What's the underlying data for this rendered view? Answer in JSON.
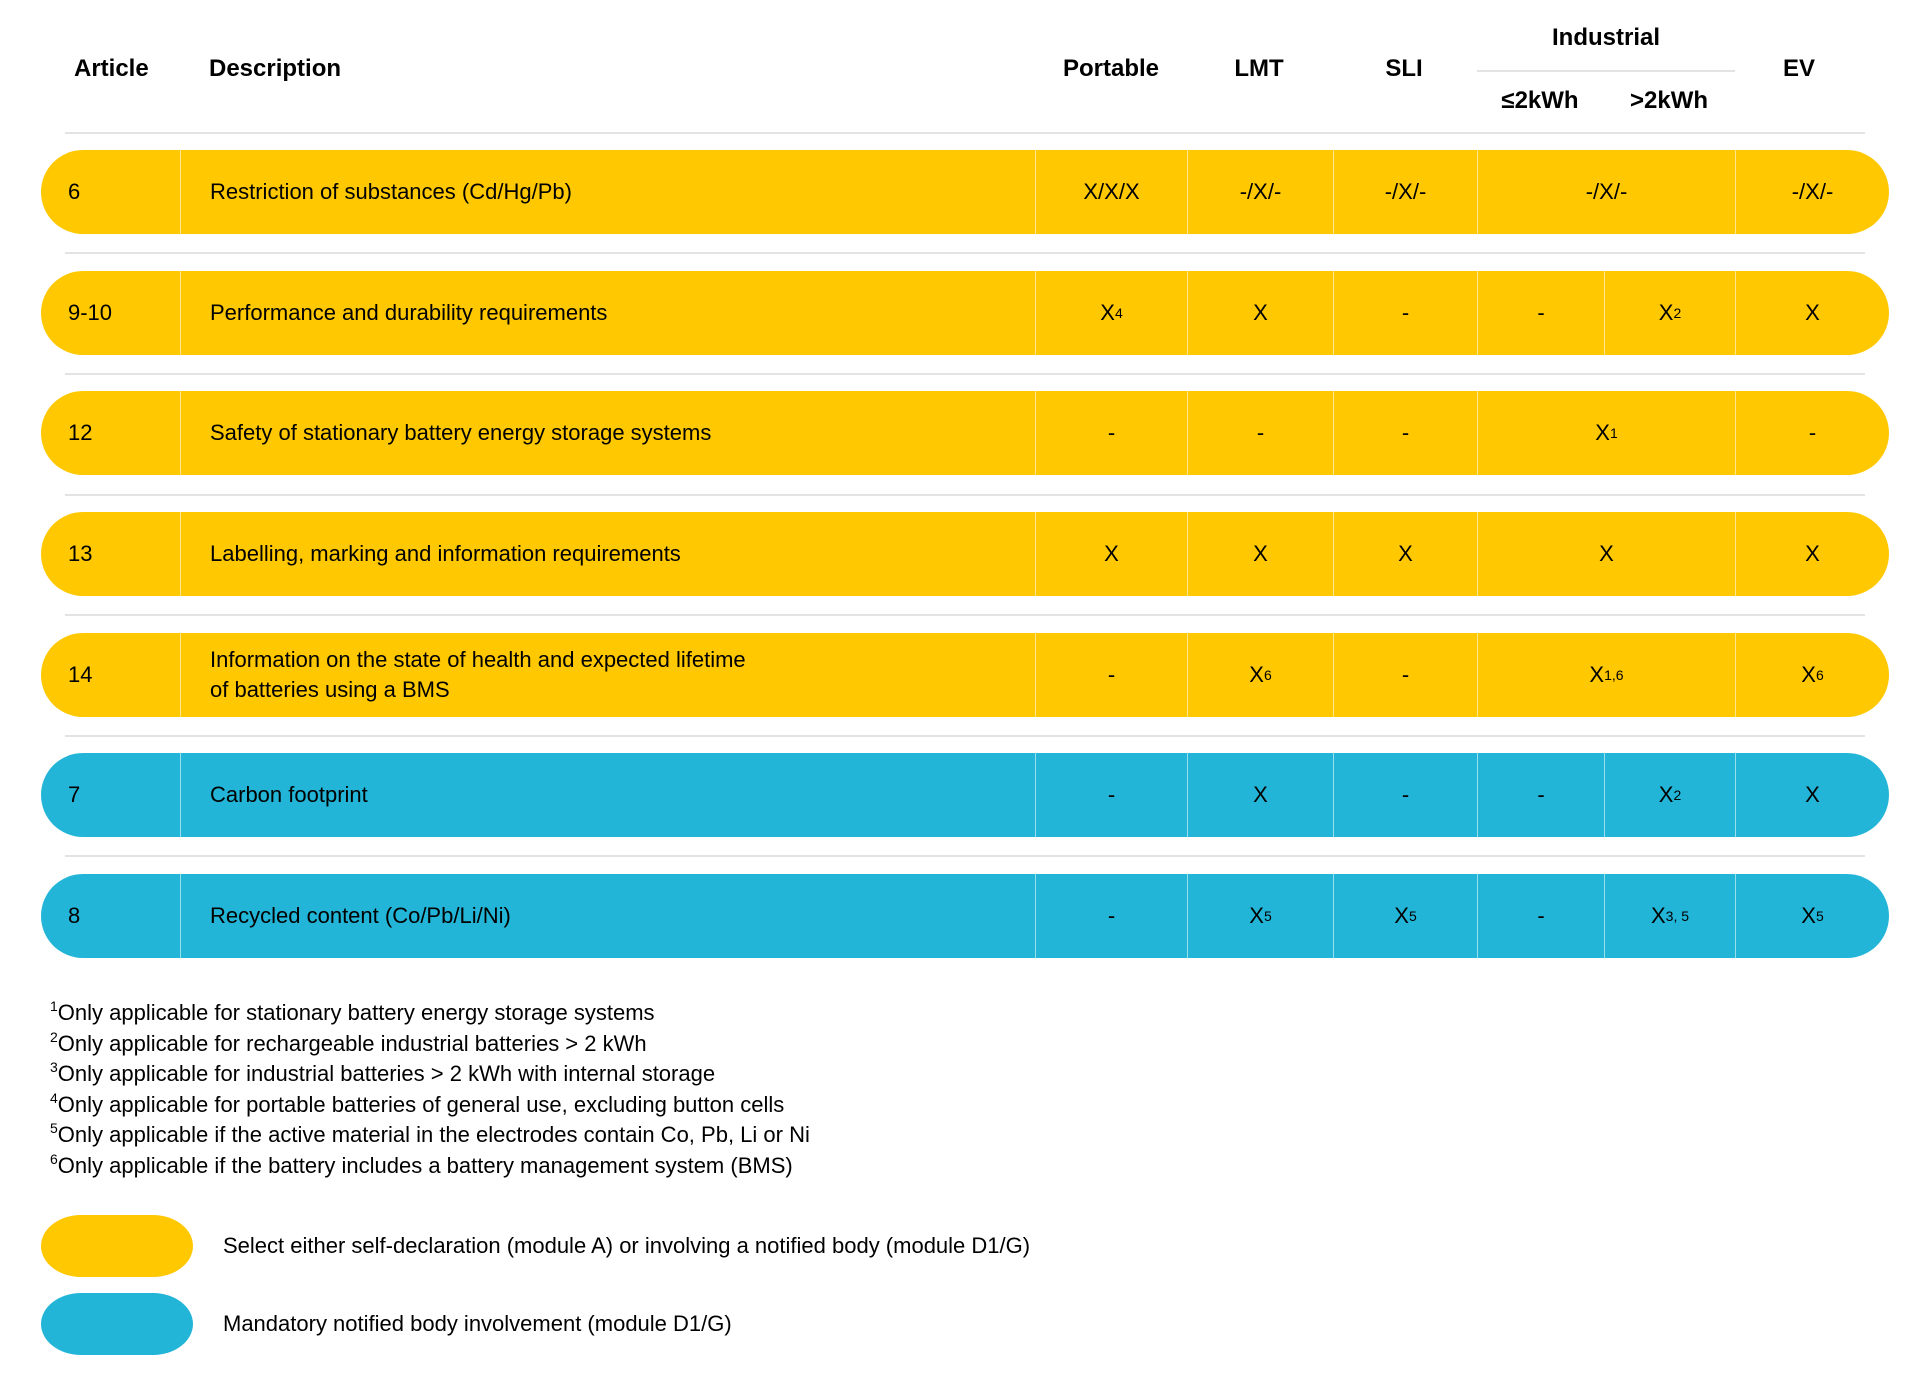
{
  "colors": {
    "self_declaration": "#FFC800",
    "notified_body": "#23B5D8"
  },
  "header": {
    "article": "Article",
    "description": "Description",
    "portable": "Portable",
    "lmt": "LMT",
    "sli": "SLI",
    "industrial": "Industrial",
    "industrial_low": "≤2kWh",
    "industrial_high": ">2kWh",
    "ev": "EV"
  },
  "rows": [
    {
      "article": "6",
      "description": "Restriction of substances (Cd/Hg/Pb)",
      "type": "self_declaration",
      "portable": {
        "v": "X/X/X",
        "s": ""
      },
      "lmt": {
        "v": "-/X/-",
        "s": ""
      },
      "sli": {
        "v": "-/X/-",
        "s": ""
      },
      "industrial": {
        "v": "-/X/-",
        "s": ""
      },
      "ev": {
        "v": "-/X/-",
        "s": ""
      }
    },
    {
      "article": "9-10",
      "description": "Performance and durability requirements",
      "type": "self_declaration",
      "portable": {
        "v": "X",
        "s": "4"
      },
      "lmt": {
        "v": "X",
        "s": ""
      },
      "sli": {
        "v": "-",
        "s": ""
      },
      "industrial_low": {
        "v": "-",
        "s": ""
      },
      "industrial_high": {
        "v": "X",
        "s": "2"
      },
      "ev": {
        "v": "X",
        "s": ""
      }
    },
    {
      "article": "12",
      "description": "Safety of stationary battery energy storage systems",
      "type": "self_declaration",
      "portable": {
        "v": "-",
        "s": ""
      },
      "lmt": {
        "v": "-",
        "s": ""
      },
      "sli": {
        "v": "-",
        "s": ""
      },
      "industrial": {
        "v": "X",
        "s": "1"
      },
      "ev": {
        "v": "-",
        "s": ""
      }
    },
    {
      "article": "13",
      "description": "Labelling, marking and information requirements",
      "type": "self_declaration",
      "portable": {
        "v": "X",
        "s": ""
      },
      "lmt": {
        "v": "X",
        "s": ""
      },
      "sli": {
        "v": "X",
        "s": ""
      },
      "industrial": {
        "v": "X",
        "s": ""
      },
      "ev": {
        "v": "X",
        "s": ""
      }
    },
    {
      "article": "14",
      "description": "Information on the state of health and expected lifetime\nof batteries using a BMS",
      "type": "self_declaration",
      "portable": {
        "v": "-",
        "s": ""
      },
      "lmt": {
        "v": "X",
        "s": "6"
      },
      "sli": {
        "v": "-",
        "s": ""
      },
      "industrial": {
        "v": "X",
        "s": "1,6"
      },
      "ev": {
        "v": "X",
        "s": "6"
      }
    },
    {
      "article": "7",
      "description": "Carbon footprint",
      "type": "notified_body",
      "portable": {
        "v": "-",
        "s": ""
      },
      "lmt": {
        "v": "X",
        "s": ""
      },
      "sli": {
        "v": "-",
        "s": ""
      },
      "industrial_low": {
        "v": "-",
        "s": ""
      },
      "industrial_high": {
        "v": "X",
        "s": "2"
      },
      "ev": {
        "v": "X",
        "s": ""
      }
    },
    {
      "article": "8",
      "description": "Recycled content (Co/Pb/Li/Ni)",
      "type": "notified_body",
      "portable": {
        "v": "-",
        "s": ""
      },
      "lmt": {
        "v": "X",
        "s": "5"
      },
      "sli": {
        "v": "X",
        "s": "5"
      },
      "industrial_low": {
        "v": "-",
        "s": ""
      },
      "industrial_high": {
        "v": "X",
        "s": "3, 5"
      },
      "ev": {
        "v": "X",
        "s": "5"
      }
    }
  ],
  "footnotes": [
    {
      "n": "1",
      "text": "Only applicable for stationary battery energy storage systems"
    },
    {
      "n": "2",
      "text": "Only applicable for rechargeable industrial batteries > 2 kWh"
    },
    {
      "n": "3",
      "text": "Only applicable for industrial batteries > 2 kWh with internal storage"
    },
    {
      "n": "4",
      "text": "Only applicable for portable batteries of general use, excluding button cells"
    },
    {
      "n": "5",
      "text": "Only applicable if the active material in the electrodes contain Co, Pb, Li or Ni"
    },
    {
      "n": "6",
      "text": "Only applicable if the battery includes a battery management system (BMS)"
    }
  ],
  "legend": [
    {
      "type": "self_declaration",
      "text": "Select either self-declaration (module A) or involving a notified body (module D1/G)"
    },
    {
      "type": "notified_body",
      "text": "Mandatory notified body involvement (module D1/G)"
    }
  ]
}
